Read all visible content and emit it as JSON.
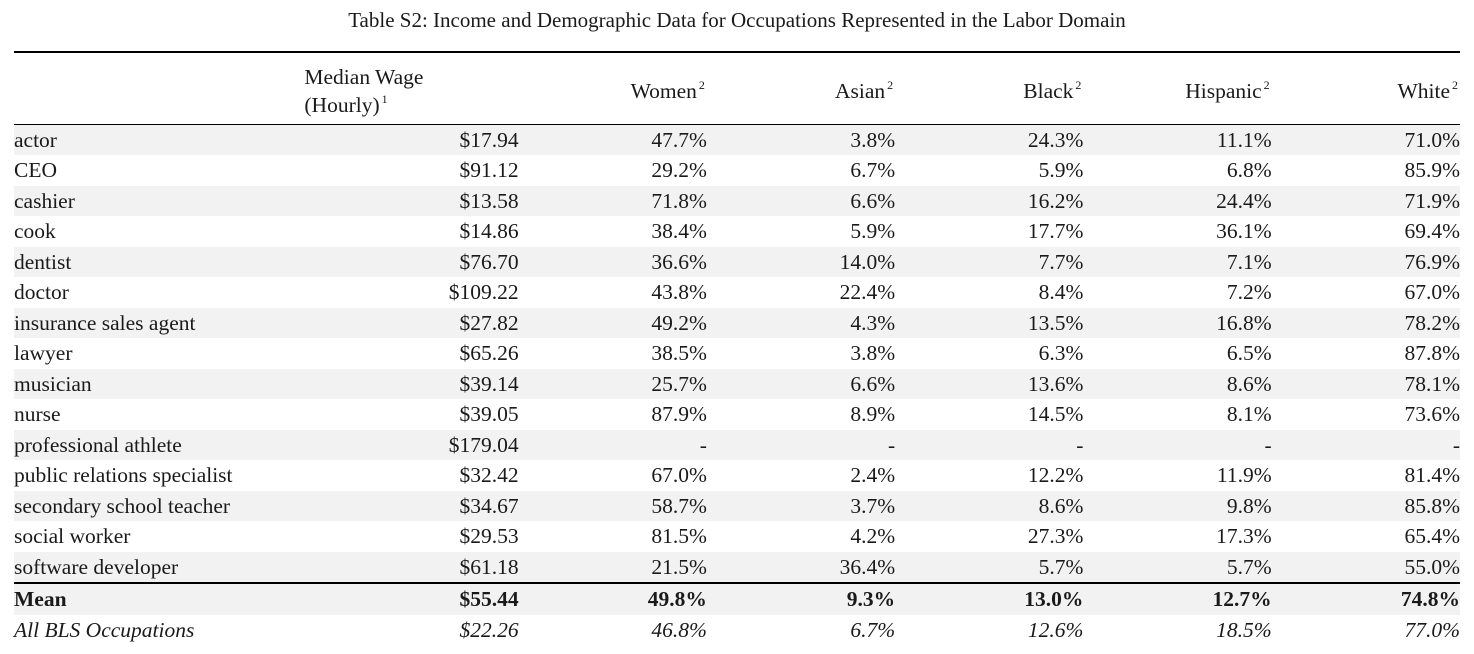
{
  "caption": "Table S2: Income and Demographic Data for Occupations Represented in the Labor Domain",
  "headers": {
    "wage_line1": "Median Wage",
    "wage_line2": "(Hourly)",
    "wage_sup": "1",
    "women": "Women",
    "asian": "Asian",
    "black": "Black",
    "hispanic": "Hispanic",
    "white": "White",
    "demo_sup": "2"
  },
  "rows": [
    {
      "occupation": "actor",
      "wage": "$17.94",
      "women": "47.7%",
      "asian": "3.8%",
      "black": "24.3%",
      "hispanic": "11.1%",
      "white": "71.0%"
    },
    {
      "occupation": "CEO",
      "wage": "$91.12",
      "women": "29.2%",
      "asian": "6.7%",
      "black": "5.9%",
      "hispanic": "6.8%",
      "white": "85.9%"
    },
    {
      "occupation": "cashier",
      "wage": "$13.58",
      "women": "71.8%",
      "asian": "6.6%",
      "black": "16.2%",
      "hispanic": "24.4%",
      "white": "71.9%"
    },
    {
      "occupation": "cook",
      "wage": "$14.86",
      "women": "38.4%",
      "asian": "5.9%",
      "black": "17.7%",
      "hispanic": "36.1%",
      "white": "69.4%"
    },
    {
      "occupation": "dentist",
      "wage": "$76.70",
      "women": "36.6%",
      "asian": "14.0%",
      "black": "7.7%",
      "hispanic": "7.1%",
      "white": "76.9%"
    },
    {
      "occupation": "doctor",
      "wage": "$109.22",
      "women": "43.8%",
      "asian": "22.4%",
      "black": "8.4%",
      "hispanic": "7.2%",
      "white": "67.0%"
    },
    {
      "occupation": "insurance sales agent",
      "wage": "$27.82",
      "women": "49.2%",
      "asian": "4.3%",
      "black": "13.5%",
      "hispanic": "16.8%",
      "white": "78.2%"
    },
    {
      "occupation": "lawyer",
      "wage": "$65.26",
      "women": "38.5%",
      "asian": "3.8%",
      "black": "6.3%",
      "hispanic": "6.5%",
      "white": "87.8%"
    },
    {
      "occupation": "musician",
      "wage": "$39.14",
      "women": "25.7%",
      "asian": "6.6%",
      "black": "13.6%",
      "hispanic": "8.6%",
      "white": "78.1%"
    },
    {
      "occupation": "nurse",
      "wage": "$39.05",
      "women": "87.9%",
      "asian": "8.9%",
      "black": "14.5%",
      "hispanic": "8.1%",
      "white": "73.6%"
    },
    {
      "occupation": "professional athlete",
      "wage": "$179.04",
      "women": "-",
      "asian": "-",
      "black": "-",
      "hispanic": "-",
      "white": "-"
    },
    {
      "occupation": "public relations specialist",
      "wage": "$32.42",
      "women": "67.0%",
      "asian": "2.4%",
      "black": "12.2%",
      "hispanic": "11.9%",
      "white": "81.4%"
    },
    {
      "occupation": "secondary school teacher",
      "wage": "$34.67",
      "women": "58.7%",
      "asian": "3.7%",
      "black": "8.6%",
      "hispanic": "9.8%",
      "white": "85.8%"
    },
    {
      "occupation": "social worker",
      "wage": "$29.53",
      "women": "81.5%",
      "asian": "4.2%",
      "black": "27.3%",
      "hispanic": "17.3%",
      "white": "65.4%"
    },
    {
      "occupation": "software developer",
      "wage": "$61.18",
      "women": "21.5%",
      "asian": "36.4%",
      "black": "5.7%",
      "hispanic": "5.7%",
      "white": "55.0%"
    }
  ],
  "mean": {
    "occupation": "Mean",
    "wage": "$55.44",
    "women": "49.8%",
    "asian": "9.3%",
    "black": "13.0%",
    "hispanic": "12.7%",
    "white": "74.8%"
  },
  "bls": {
    "occupation": "All BLS Occupations",
    "wage": "$22.26",
    "women": "46.8%",
    "asian": "6.7%",
    "black": "12.6%",
    "hispanic": "18.5%",
    "white": "77.0%"
  }
}
